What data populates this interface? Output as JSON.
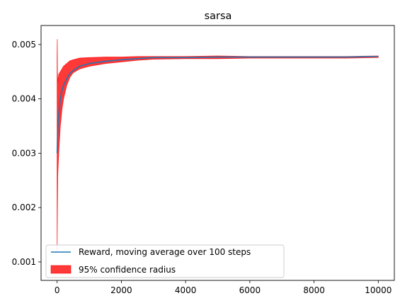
{
  "chart_data": {
    "type": "line",
    "title": "sarsa",
    "xlabel": "",
    "ylabel": "",
    "xlim": [
      -500,
      10500
    ],
    "ylim": [
      0.00066,
      0.00535
    ],
    "xticks": [
      0,
      2000,
      4000,
      6000,
      8000,
      10000
    ],
    "xtick_labels": [
      "0",
      "2000",
      "4000",
      "6000",
      "8000",
      "10000"
    ],
    "yticks": [
      0.001,
      0.002,
      0.003,
      0.004,
      0.005
    ],
    "ytick_labels": [
      "0.001",
      "0.002",
      "0.003",
      "0.004",
      "0.005"
    ],
    "grid": false,
    "legend_position": "lower-left",
    "legend": [
      {
        "label": "Reward, moving average over 100 steps",
        "kind": "line",
        "color": "#1f77b4"
      },
      {
        "label": "95% confidence radius",
        "kind": "patch",
        "color": "#ff0000"
      }
    ],
    "series": [
      {
        "name": "Reward, moving average over 100 steps",
        "color": "#1f77b4",
        "x": [
          0,
          20,
          50,
          100,
          150,
          200,
          300,
          400,
          500,
          700,
          1000,
          1500,
          2000,
          2500,
          3000,
          4000,
          5000,
          6000,
          7000,
          8000,
          9000,
          10000
        ],
        "values": [
          0.003,
          0.00345,
          0.0037,
          0.004,
          0.00415,
          0.00425,
          0.00437,
          0.00447,
          0.00452,
          0.0046,
          0.00465,
          0.00469,
          0.00472,
          0.00474,
          0.00476,
          0.00476,
          0.00477,
          0.00477,
          0.00477,
          0.00477,
          0.00477,
          0.00478
        ]
      }
    ],
    "confidence_band": {
      "name": "95% confidence radius",
      "color": "#ff0000",
      "opacity": 0.78,
      "x": [
        0,
        5,
        10,
        20,
        50,
        100,
        150,
        200,
        300,
        400,
        500,
        700,
        1000,
        1500,
        2000,
        2500,
        3000,
        4000,
        5000,
        6000,
        7000,
        8000,
        9000,
        10000
      ],
      "upper": [
        0.0048,
        0.0051,
        0.0045,
        0.0043,
        0.00445,
        0.0045,
        0.00455,
        0.0046,
        0.00465,
        0.0047,
        0.00472,
        0.00475,
        0.00476,
        0.00477,
        0.00477,
        0.00478,
        0.00478,
        0.00478,
        0.00479,
        0.00478,
        0.00478,
        0.00478,
        0.00478,
        0.00479
      ],
      "lower": [
        0.0012,
        0.0016,
        0.002,
        0.0026,
        0.003,
        0.0035,
        0.0038,
        0.004,
        0.00425,
        0.0044,
        0.00448,
        0.00455,
        0.0046,
        0.00465,
        0.00468,
        0.00471,
        0.00473,
        0.00474,
        0.00474,
        0.00475,
        0.00475,
        0.00475,
        0.00475,
        0.00476
      ]
    }
  }
}
